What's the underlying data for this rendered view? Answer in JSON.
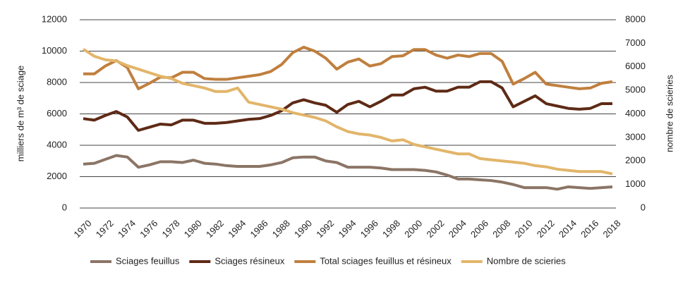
{
  "chart_data": {
    "type": "line",
    "y_label": "milliers de m³ de sciage",
    "y2_label": "nombre de scieries",
    "x": [
      1970,
      1971,
      1972,
      1973,
      1974,
      1975,
      1976,
      1977,
      1978,
      1979,
      1980,
      1981,
      1982,
      1983,
      1984,
      1985,
      1986,
      1987,
      1988,
      1989,
      1990,
      1991,
      1992,
      1993,
      1994,
      1995,
      1996,
      1997,
      1998,
      1999,
      2000,
      2001,
      2002,
      2003,
      2004,
      2005,
      2006,
      2007,
      2008,
      2009,
      2010,
      2011,
      2012,
      2013,
      2014,
      2015,
      2016,
      2017,
      2018
    ],
    "xlim": [
      1970,
      2018
    ],
    "xticks": [
      1970,
      1972,
      1974,
      1976,
      1978,
      1980,
      1982,
      1984,
      1986,
      1988,
      1990,
      1992,
      1994,
      1996,
      1998,
      2000,
      2002,
      2004,
      2006,
      2008,
      2010,
      2012,
      2014,
      2016,
      2018
    ],
    "ylim": [
      0,
      12000
    ],
    "yticks": [
      0,
      2000,
      4000,
      6000,
      8000,
      10000,
      12000
    ],
    "y2lim": [
      0,
      8000
    ],
    "y2ticks": [
      0,
      1000,
      2000,
      3000,
      4000,
      5000,
      6000,
      7000,
      8000
    ],
    "grid": true,
    "legend": "bottom",
    "series": [
      {
        "name": "Sciages feuillus",
        "color": "#8b7566",
        "values": [
          2800,
          2850,
          3100,
          3350,
          3250,
          2600,
          2750,
          2950,
          2950,
          2900,
          3050,
          2850,
          2800,
          2700,
          2650,
          2650,
          2650,
          2750,
          2900,
          3200,
          3250,
          3250,
          3000,
          2900,
          2600,
          2600,
          2600,
          2550,
          2450,
          2450,
          2450,
          2400,
          2300,
          2100,
          1850,
          1850,
          1800,
          1750,
          1650,
          1500,
          1300,
          1300,
          1300,
          1200,
          1350,
          1300,
          1250,
          1300,
          1350
        ]
      },
      {
        "name": "Sciages résineux",
        "color": "#5e2a16",
        "values": [
          5700,
          5600,
          5900,
          6150,
          5800,
          4950,
          5150,
          5350,
          5300,
          5600,
          5600,
          5400,
          5400,
          5450,
          5550,
          5650,
          5700,
          5900,
          6200,
          6700,
          6900,
          6700,
          6550,
          6100,
          6600,
          6800,
          6450,
          6800,
          7200,
          7200,
          7600,
          7700,
          7450,
          7450,
          7700,
          7700,
          8050,
          8050,
          7650,
          6450,
          6800,
          7150,
          6650,
          6500,
          6350,
          6300,
          6350,
          6650,
          6650
        ]
      },
      {
        "name": "Total sciages feuillus et résineux",
        "color": "#c07f3e",
        "values": [
          8550,
          8550,
          9050,
          9400,
          8950,
          7600,
          7950,
          8350,
          8300,
          8650,
          8650,
          8250,
          8200,
          8200,
          8300,
          8400,
          8500,
          8700,
          9150,
          9900,
          10250,
          10000,
          9550,
          8850,
          9300,
          9500,
          9050,
          9200,
          9650,
          9700,
          10100,
          10100,
          9750,
          9550,
          9750,
          9650,
          9850,
          9850,
          9350,
          7900,
          8250,
          8650,
          7900,
          7800,
          7700,
          7600,
          7650,
          7950,
          8050
        ]
      },
      {
        "name": "Nombre de scieries",
        "color": "#e2b56a",
        "axis": "y2",
        "values": [
          6750,
          6450,
          6300,
          6250,
          6050,
          5900,
          5750,
          5600,
          5500,
          5300,
          5200,
          5100,
          4950,
          4950,
          5100,
          4500,
          4400,
          4300,
          4200,
          4050,
          3950,
          3850,
          3700,
          3450,
          3250,
          3150,
          3100,
          3000,
          2850,
          2900,
          2700,
          2600,
          2500,
          2400,
          2300,
          2300,
          2100,
          2050,
          2000,
          1950,
          1900,
          1800,
          1750,
          1650,
          1600,
          1550,
          1550,
          1550,
          1450
        ]
      }
    ]
  }
}
